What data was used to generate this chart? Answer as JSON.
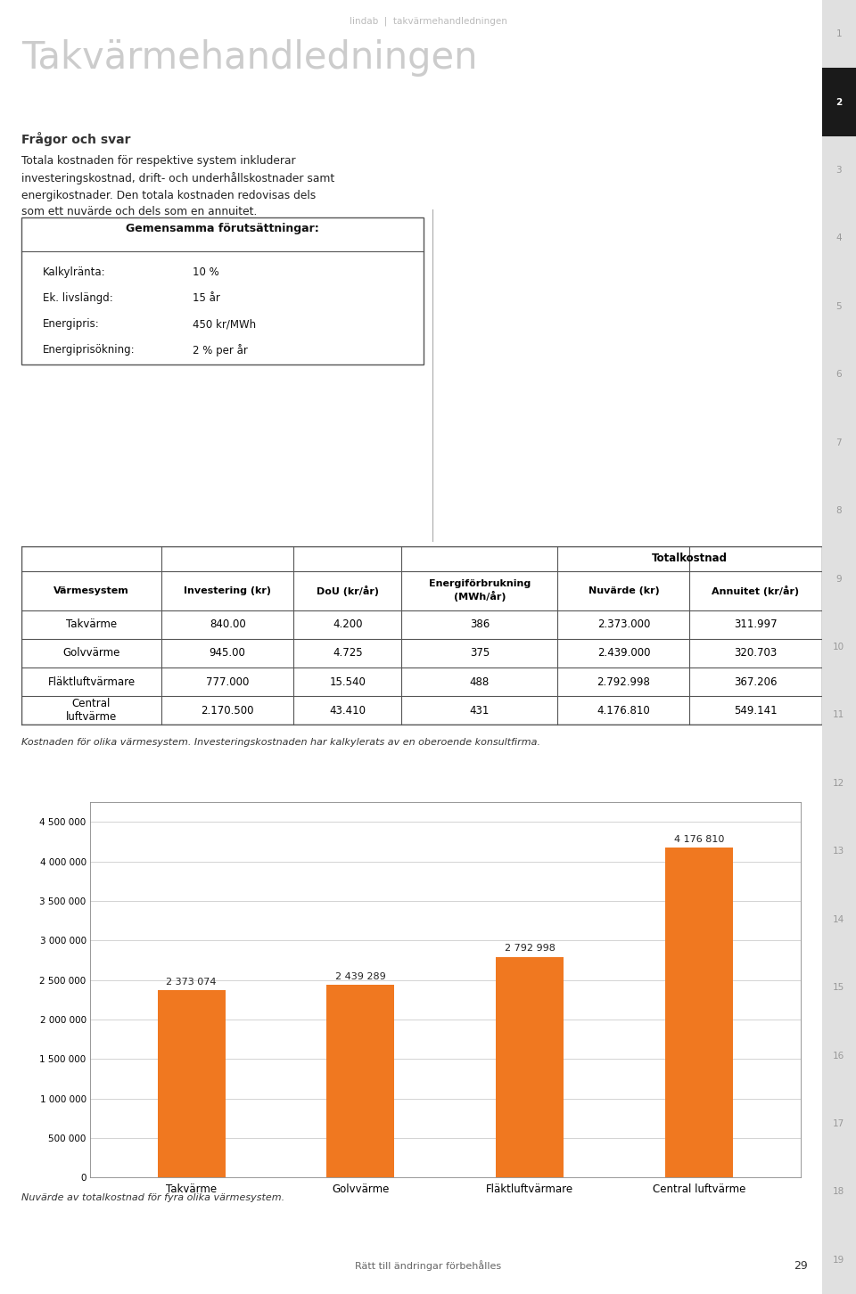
{
  "page_title": "Takvärmehandledningen",
  "header_text": "lindab  |  takvärmehandledningen",
  "section_title": "Frågor och svar",
  "body_text_lines": [
    "Totala kostnaden för respektive system inkluderar",
    "investeringskostnad, drift- och underhållskostnader samt",
    "energikostnader. Den totala kostnaden redovisas dels",
    "som ett nuvärde och dels som en annuitet."
  ],
  "box_title": "Gemensamma förutsättningar:",
  "box_items": [
    [
      "Kalkylränta:",
      "10 %"
    ],
    [
      "Ek. livslängd:",
      "15 år"
    ],
    [
      "Energipris:",
      "450 kr/MWh"
    ],
    [
      "Energiprisökning:",
      "2 % per år"
    ]
  ],
  "table_header_row2": [
    "Värmesystem",
    "Investering (kr)",
    "DoU (kr/år)",
    "Energiförbrukning\n(MWh/år)",
    "Nuvärde (kr)",
    "Annuitet (kr/år)"
  ],
  "table_rows": [
    [
      "Takvärme",
      "840.00",
      "4.200",
      "386",
      "2.373.000",
      "311.997"
    ],
    [
      "Golvvärme",
      "945.00",
      "4.725",
      "375",
      "2.439.000",
      "320.703"
    ],
    [
      "Fläktluftvärmare",
      "777.000",
      "15.540",
      "488",
      "2.792.998",
      "367.206"
    ],
    [
      "Central\nluftvärme",
      "2.170.500",
      "43.410",
      "431",
      "4.176.810",
      "549.141"
    ]
  ],
  "table_caption": "Kostnaden för olika värmesystem. Investeringskostnaden har kalkylerats av en oberoende konsultfirma.",
  "bar_categories": [
    "Takvärme",
    "Golvvärme",
    "Fläktluftvärmare",
    "Central luftvärme"
  ],
  "bar_values": [
    2373074,
    2439289,
    2792998,
    4176810
  ],
  "bar_labels": [
    "2 373 074",
    "2 439 289",
    "2 792 998",
    "4 176 810"
  ],
  "bar_color": "#F07820",
  "bar_chart_caption": "Nuvärde av totalkostnad för fyra olika värmesystem.",
  "y_ticks": [
    0,
    500000,
    1000000,
    1500000,
    2000000,
    2500000,
    3000000,
    3500000,
    4000000,
    4500000
  ],
  "y_tick_labels": [
    "0",
    "500 000",
    "1 000 000",
    "1 500 000",
    "2 000 000",
    "2 500 000",
    "3 000 000",
    "3 500 000",
    "4 000 000",
    "4 500 000"
  ],
  "footer_text": "Rätt till ändringar förbehålles",
  "page_number": "29",
  "side_numbers": [
    "1",
    "2",
    "3",
    "4",
    "5",
    "6",
    "7",
    "8",
    "9",
    "10",
    "11",
    "12",
    "13",
    "14",
    "15",
    "16",
    "17",
    "18",
    "19"
  ],
  "active_side_number": "2",
  "bg_color": "#ffffff",
  "side_tab_bg": "#e0e0e0",
  "side_tab_active_bg": "#1a1a1a",
  "side_tab_text": "#999999",
  "side_tab_active_text": "#ffffff",
  "header_color": "#bbbbbb",
  "title_color": "#cccccc",
  "section_title_color": "#333333",
  "body_text_color": "#222222",
  "table_border_color": "#555555",
  "orange_accent": "#F07820",
  "col_widths_norm": [
    0.175,
    0.165,
    0.135,
    0.195,
    0.165,
    0.165
  ]
}
